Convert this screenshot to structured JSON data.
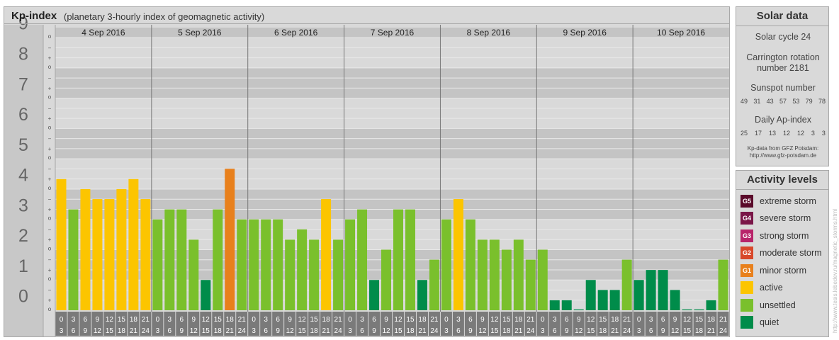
{
  "chart_data": {
    "type": "bar",
    "title": "Kp-index",
    "subtitle": "(planetary 3-hourly index of geomagnetic activity)",
    "y_labels": [
      "0",
      "1",
      "2",
      "3",
      "4",
      "5",
      "6",
      "7",
      "8",
      "9"
    ],
    "minor_labels": [
      "o",
      "+",
      "−"
    ],
    "ylim": [
      0,
      9.33
    ],
    "days": [
      "4 Sep 2016",
      "5 Sep 2016",
      "6 Sep 2016",
      "7 Sep 2016",
      "8 Sep 2016",
      "9 Sep 2016",
      "10 Sep 2016"
    ],
    "intervals": [
      [
        "0",
        "3"
      ],
      [
        "3",
        "6"
      ],
      [
        "6",
        "9"
      ],
      [
        "9",
        "12"
      ],
      [
        "12",
        "15"
      ],
      [
        "15",
        "18"
      ],
      [
        "18",
        "21"
      ],
      [
        "21",
        "24"
      ]
    ],
    "values": [
      4.33,
      3.33,
      4.0,
      3.67,
      3.67,
      4.0,
      4.33,
      3.67,
      3.0,
      3.33,
      3.33,
      2.33,
      1.0,
      3.33,
      4.67,
      3.0,
      3.0,
      3.0,
      3.0,
      2.33,
      2.67,
      2.33,
      3.67,
      2.33,
      3.0,
      3.33,
      1.0,
      2.0,
      3.33,
      3.33,
      1.0,
      1.67,
      3.0,
      3.67,
      3.0,
      2.33,
      2.33,
      2.0,
      2.33,
      1.67,
      2.0,
      0.33,
      0.33,
      0.0,
      1.0,
      0.67,
      0.67,
      1.67,
      1.0,
      1.33,
      1.33,
      0.67,
      0.0,
      0.0,
      0.33,
      1.67
    ],
    "levels": {
      "quiet": "#008c4a",
      "unsettled": "#7ac02c",
      "active": "#fcc500",
      "minor": "#e8801c"
    }
  },
  "solar": {
    "title": "Solar data",
    "cycle": "Solar cycle 24",
    "carrington_1": "Carrington rotation",
    "carrington_2": "number 2181",
    "sunspot_title": "Sunspot number",
    "sunspot": [
      "49",
      "31",
      "43",
      "57",
      "53",
      "79",
      "78"
    ],
    "ap_title": "Daily Ap-index",
    "ap": [
      "25",
      "17",
      "13",
      "12",
      "12",
      "3",
      "3"
    ],
    "source_1": "Kp-data from GFZ Potsdam:",
    "source_2": "http://www.gfz-potsdam.de"
  },
  "activity": {
    "title": "Activity levels",
    "items": [
      {
        "code": "G5",
        "label": "extreme storm",
        "color": "#5a0a2a"
      },
      {
        "code": "G4",
        "label": "severe storm",
        "color": "#7a1648"
      },
      {
        "code": "G3",
        "label": "strong storm",
        "color": "#b8246a"
      },
      {
        "code": "G2",
        "label": "moderate storm",
        "color": "#d8482a"
      },
      {
        "code": "G1",
        "label": "minor storm",
        "color": "#e8801c"
      },
      {
        "code": "",
        "label": "active",
        "color": "#fcc500"
      },
      {
        "code": "",
        "label": "unsettled",
        "color": "#7ac02c"
      },
      {
        "code": "",
        "label": "quiet",
        "color": "#008c4a"
      }
    ]
  },
  "credit": "http://www.tesis.lebedev.ru/magnetic_storms.html"
}
